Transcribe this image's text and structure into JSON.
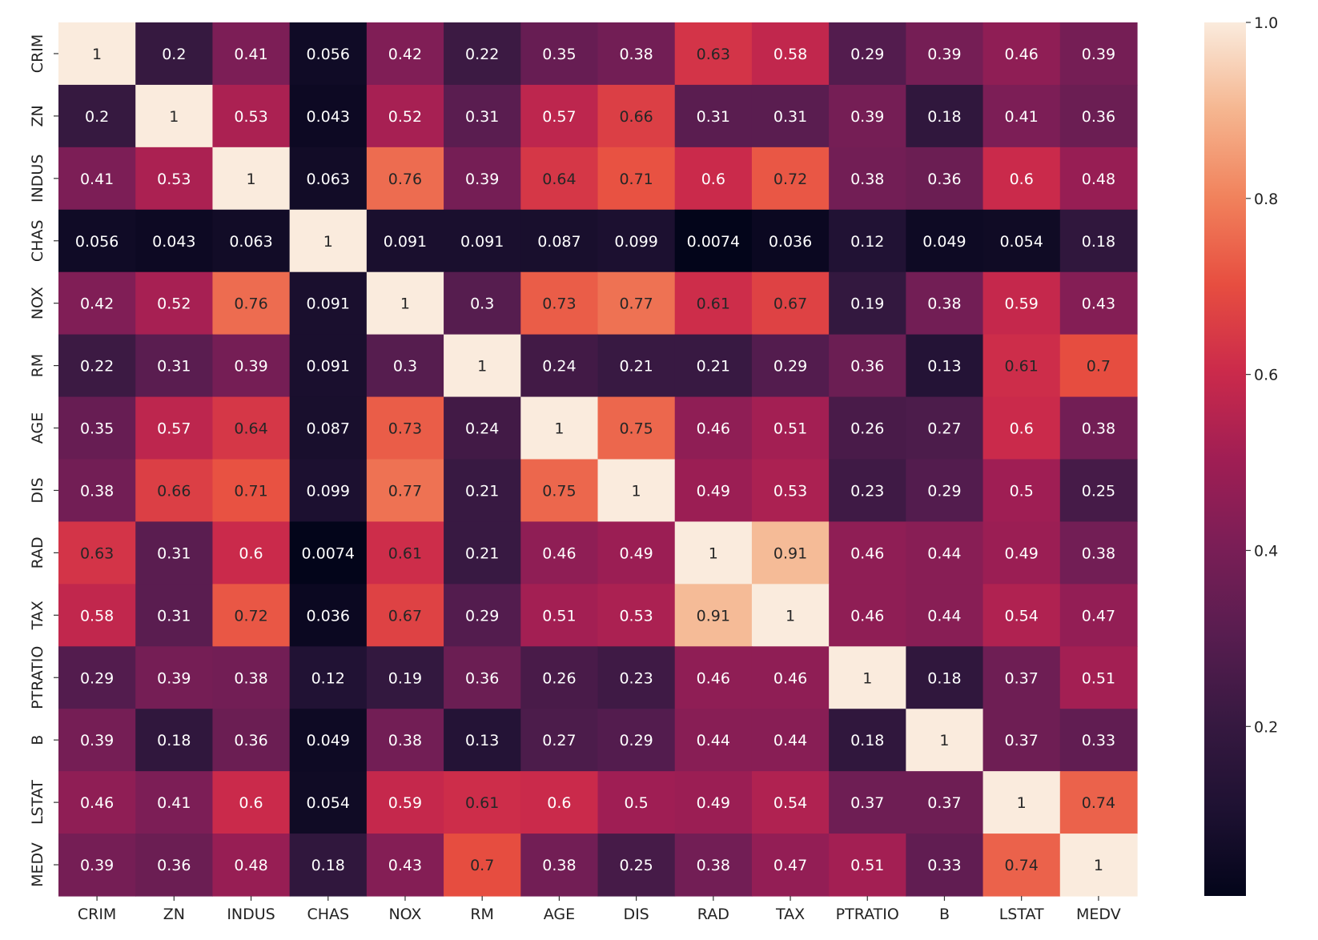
{
  "chart_data": {
    "type": "heatmap",
    "title": "",
    "xlabel": "",
    "ylabel": "",
    "labels": [
      "CRIM",
      "ZN",
      "INDUS",
      "CHAS",
      "NOX",
      "RM",
      "AGE",
      "DIS",
      "RAD",
      "TAX",
      "PTRATIO",
      "B",
      "LSTAT",
      "MEDV"
    ],
    "values": [
      [
        1,
        0.2,
        0.41,
        0.056,
        0.42,
        0.22,
        0.35,
        0.38,
        0.63,
        0.58,
        0.29,
        0.39,
        0.46,
        0.39
      ],
      [
        0.2,
        1,
        0.53,
        0.043,
        0.52,
        0.31,
        0.57,
        0.66,
        0.31,
        0.31,
        0.39,
        0.18,
        0.41,
        0.36
      ],
      [
        0.41,
        0.53,
        1,
        0.063,
        0.76,
        0.39,
        0.64,
        0.71,
        0.6,
        0.72,
        0.38,
        0.36,
        0.6,
        0.48
      ],
      [
        0.056,
        0.043,
        0.063,
        1,
        0.091,
        0.091,
        0.087,
        0.099,
        0.0074,
        0.036,
        0.12,
        0.049,
        0.054,
        0.18
      ],
      [
        0.42,
        0.52,
        0.76,
        0.091,
        1,
        0.3,
        0.73,
        0.77,
        0.61,
        0.67,
        0.19,
        0.38,
        0.59,
        0.43
      ],
      [
        0.22,
        0.31,
        0.39,
        0.091,
        0.3,
        1,
        0.24,
        0.21,
        0.21,
        0.29,
        0.36,
        0.13,
        0.61,
        0.7
      ],
      [
        0.35,
        0.57,
        0.64,
        0.087,
        0.73,
        0.24,
        1,
        0.75,
        0.46,
        0.51,
        0.26,
        0.27,
        0.6,
        0.38
      ],
      [
        0.38,
        0.66,
        0.71,
        0.099,
        0.77,
        0.21,
        0.75,
        1,
        0.49,
        0.53,
        0.23,
        0.29,
        0.5,
        0.25
      ],
      [
        0.63,
        0.31,
        0.6,
        0.0074,
        0.61,
        0.21,
        0.46,
        0.49,
        1,
        0.91,
        0.46,
        0.44,
        0.49,
        0.38
      ],
      [
        0.58,
        0.31,
        0.72,
        0.036,
        0.67,
        0.29,
        0.51,
        0.53,
        0.91,
        1,
        0.46,
        0.44,
        0.54,
        0.47
      ],
      [
        0.29,
        0.39,
        0.38,
        0.12,
        0.19,
        0.36,
        0.26,
        0.23,
        0.46,
        0.46,
        1,
        0.18,
        0.37,
        0.51
      ],
      [
        0.39,
        0.18,
        0.36,
        0.049,
        0.38,
        0.13,
        0.27,
        0.29,
        0.44,
        0.44,
        0.18,
        1,
        0.37,
        0.33
      ],
      [
        0.46,
        0.41,
        0.6,
        0.054,
        0.59,
        0.61,
        0.6,
        0.5,
        0.49,
        0.54,
        0.37,
        0.37,
        1,
        0.74
      ],
      [
        0.39,
        0.36,
        0.48,
        0.18,
        0.43,
        0.7,
        0.38,
        0.25,
        0.38,
        0.47,
        0.51,
        0.33,
        0.74,
        1
      ]
    ],
    "vmin": 0.0074,
    "vmax": 1.0,
    "colormap": "rocket",
    "colorbar": {
      "ticks": [
        0.2,
        0.4,
        0.6,
        0.8,
        1.0
      ],
      "tick_labels": [
        "0.2",
        "0.4",
        "0.6",
        "0.8",
        "1.0"
      ],
      "placement": "right"
    },
    "annotation_dark_text_threshold": 0.6,
    "annotation_text_colors": {
      "light": "#ffffff",
      "dark": "#262626"
    },
    "grid": false
  }
}
